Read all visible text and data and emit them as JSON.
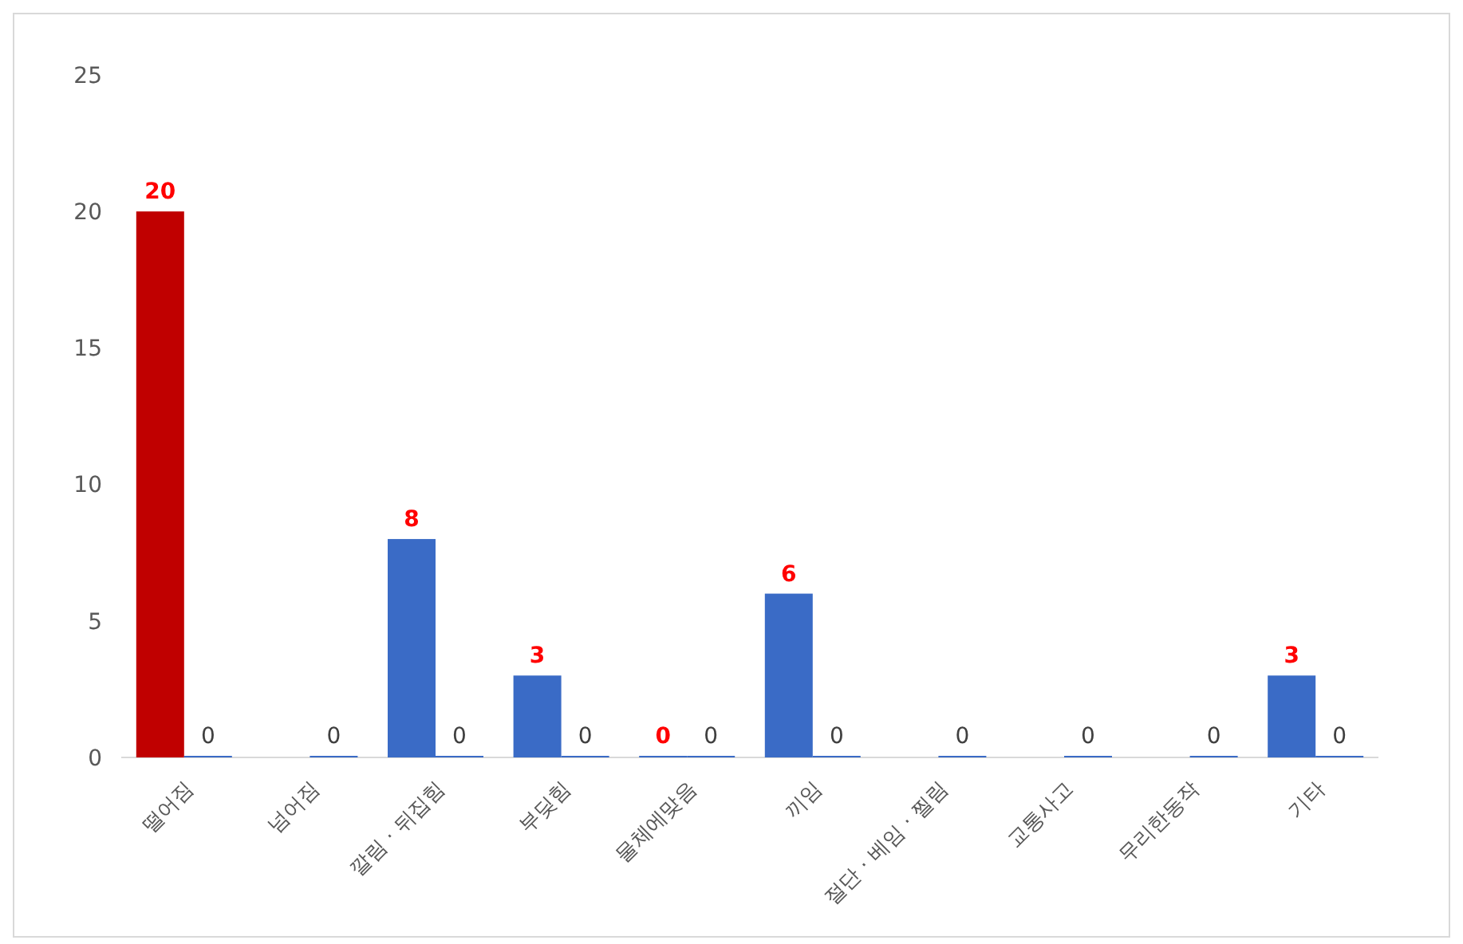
{
  "chart_data": {
    "type": "bar",
    "categories": [
      "떨어짐",
      "넘어짐",
      "깔림 · 뒤집힘",
      "부딪힘",
      "물체에맞음",
      "끼임",
      "절단 · 베임 · 찔림",
      "교통사고",
      "무리한동작",
      "기타"
    ],
    "series": [
      {
        "colors": [
          "#c00000",
          null,
          "#3a6bc6",
          "#3a6bc6",
          "#3a6bc6",
          "#3a6bc6",
          null,
          null,
          null,
          "#3a6bc6"
        ],
        "values": [
          20,
          null,
          8,
          3,
          0,
          6,
          null,
          null,
          null,
          3
        ]
      },
      {
        "color": "#3a6bc6",
        "values": [
          0,
          0,
          0,
          0,
          0,
          0,
          0,
          0,
          0,
          0
        ]
      }
    ],
    "ylim": [
      0,
      25
    ],
    "yticks": [
      0,
      5,
      10,
      15,
      20,
      25
    ],
    "grid": false,
    "data_labels": true
  }
}
